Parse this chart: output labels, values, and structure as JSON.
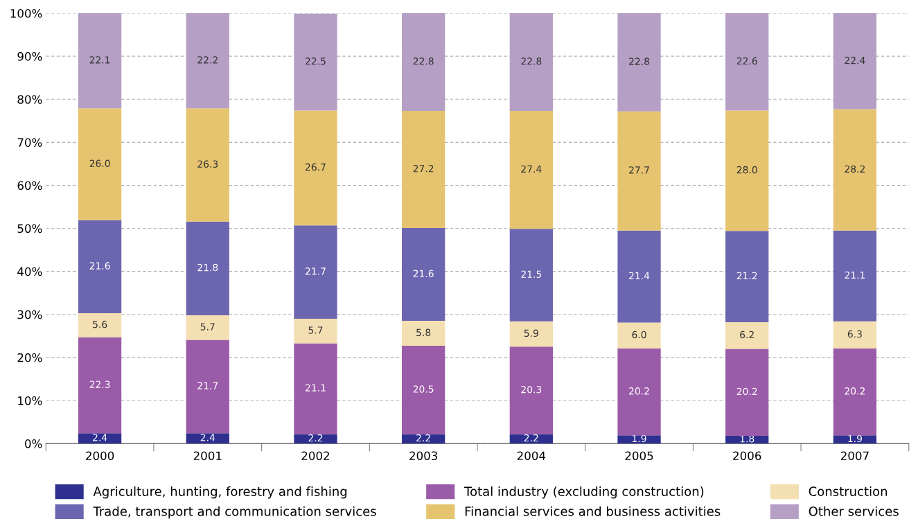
{
  "chart_data": {
    "type": "bar",
    "stacked": true,
    "categories": [
      "2000",
      "2001",
      "2002",
      "2003",
      "2004",
      "2005",
      "2006",
      "2007"
    ],
    "series": [
      {
        "name": "Agriculture, hunting, forestry and fishing",
        "color": "#2e2f8f",
        "values": [
          2.4,
          2.4,
          2.2,
          2.2,
          2.2,
          1.9,
          1.8,
          1.9
        ],
        "value_labels": [
          "2.4",
          "2.4",
          "2.2",
          "2.2",
          "2.2",
          "1.9",
          "1.8",
          "1.9"
        ]
      },
      {
        "name": "Total industry (excluding construction)",
        "color": "#9a5ba8",
        "values": [
          22.3,
          21.7,
          21.1,
          20.5,
          20.3,
          20.2,
          20.2,
          20.2
        ],
        "value_labels": [
          "22.3",
          "21.7",
          "21.1",
          "20.5",
          "20.3",
          "20.2",
          "20.2",
          "20.2"
        ]
      },
      {
        "name": "Construction",
        "color": "#f3dfb1",
        "values": [
          5.6,
          5.7,
          5.7,
          5.8,
          5.9,
          6.0,
          6.2,
          6.3
        ],
        "value_labels": [
          "5.6",
          "5.7",
          "5.7",
          "5.8",
          "5.9",
          "6.0",
          "6.2",
          "6.3"
        ]
      },
      {
        "name": "Trade, transport and communication services",
        "color": "#6c66b0",
        "values": [
          21.6,
          21.8,
          21.7,
          21.6,
          21.5,
          21.4,
          21.2,
          21.1
        ],
        "value_labels": [
          "21.6",
          "21.8",
          "21.7",
          "21.6",
          "21.5",
          "21.4",
          "21.2",
          "21.1"
        ]
      },
      {
        "name": "Financial services and business activities",
        "color": "#e6c46f",
        "values": [
          26.0,
          26.3,
          26.7,
          27.2,
          27.4,
          27.7,
          28.0,
          28.2
        ],
        "value_labels": [
          "26.0",
          "26.3",
          "26.7",
          "27.2",
          "27.4",
          "27.7",
          "28.0",
          "28.2"
        ]
      },
      {
        "name": "Other services",
        "color": "#b59fc5",
        "values": [
          22.1,
          22.2,
          22.5,
          22.8,
          22.8,
          22.8,
          22.6,
          22.4
        ],
        "value_labels": [
          "22.1",
          "22.2",
          "22.5",
          "22.8",
          "22.8",
          "22.8",
          "22.6",
          "22.4"
        ]
      }
    ],
    "ylim": [
      0,
      100
    ],
    "yticks": [
      {
        "value": 0,
        "label": "0%"
      },
      {
        "value": 10,
        "label": "10%"
      },
      {
        "value": 20,
        "label": "20%"
      },
      {
        "value": 30,
        "label": "30%"
      },
      {
        "value": 40,
        "label": "40%"
      },
      {
        "value": 50,
        "label": "50%"
      },
      {
        "value": 60,
        "label": "60%"
      },
      {
        "value": 70,
        "label": "70%"
      },
      {
        "value": 80,
        "label": "80%"
      },
      {
        "value": 90,
        "label": "90%"
      },
      {
        "value": 100,
        "label": "100%"
      }
    ],
    "grid": "y",
    "line_style": "dashed",
    "legend": "bottom"
  }
}
